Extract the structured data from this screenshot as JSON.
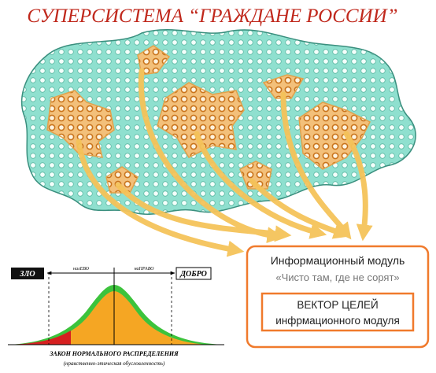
{
  "title": "СУПЕРСИСТЕМА “ГРАЖДАНЕ РОССИИ”",
  "info_box": {
    "title": "Информационный модуль",
    "quote": "«Чисто там, где не сорят»",
    "vector_box": {
      "line1": "ВЕКТОР ЦЕЛЕЙ",
      "line2": "инфрмационного модуля"
    }
  },
  "distribution": {
    "left_label": "ЗЛО",
    "right_label": "ДОБРО",
    "left_direction": "налЕВО",
    "right_direction": "наПРАВО",
    "caption": "ЗАКОН НОРМАЛЬНОГО РАСПРЕДЕЛЕНИЯ",
    "subcaption": "(нравственно-этическая обусловленность)"
  }
}
